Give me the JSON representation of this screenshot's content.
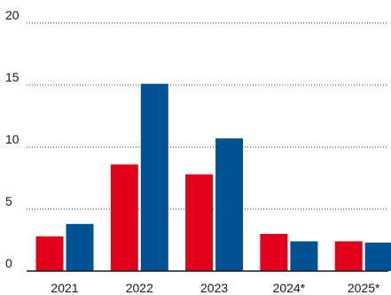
{
  "chart_data": {
    "type": "bar",
    "categories": [
      "2021",
      "2022",
      "2023",
      "2024*",
      "2025*"
    ],
    "series": [
      {
        "name": "",
        "color": "#e2001a",
        "values": [
          2.8,
          8.6,
          7.8,
          3.0,
          2.4
        ]
      },
      {
        "name": "",
        "color": "#005293",
        "values": [
          3.8,
          15.1,
          10.7,
          2.4,
          2.3
        ]
      }
    ],
    "yticks": [
      "0",
      "5",
      "10",
      "15",
      "20"
    ],
    "ylim": [
      0,
      20
    ],
    "grid": true,
    "legend": "none"
  }
}
